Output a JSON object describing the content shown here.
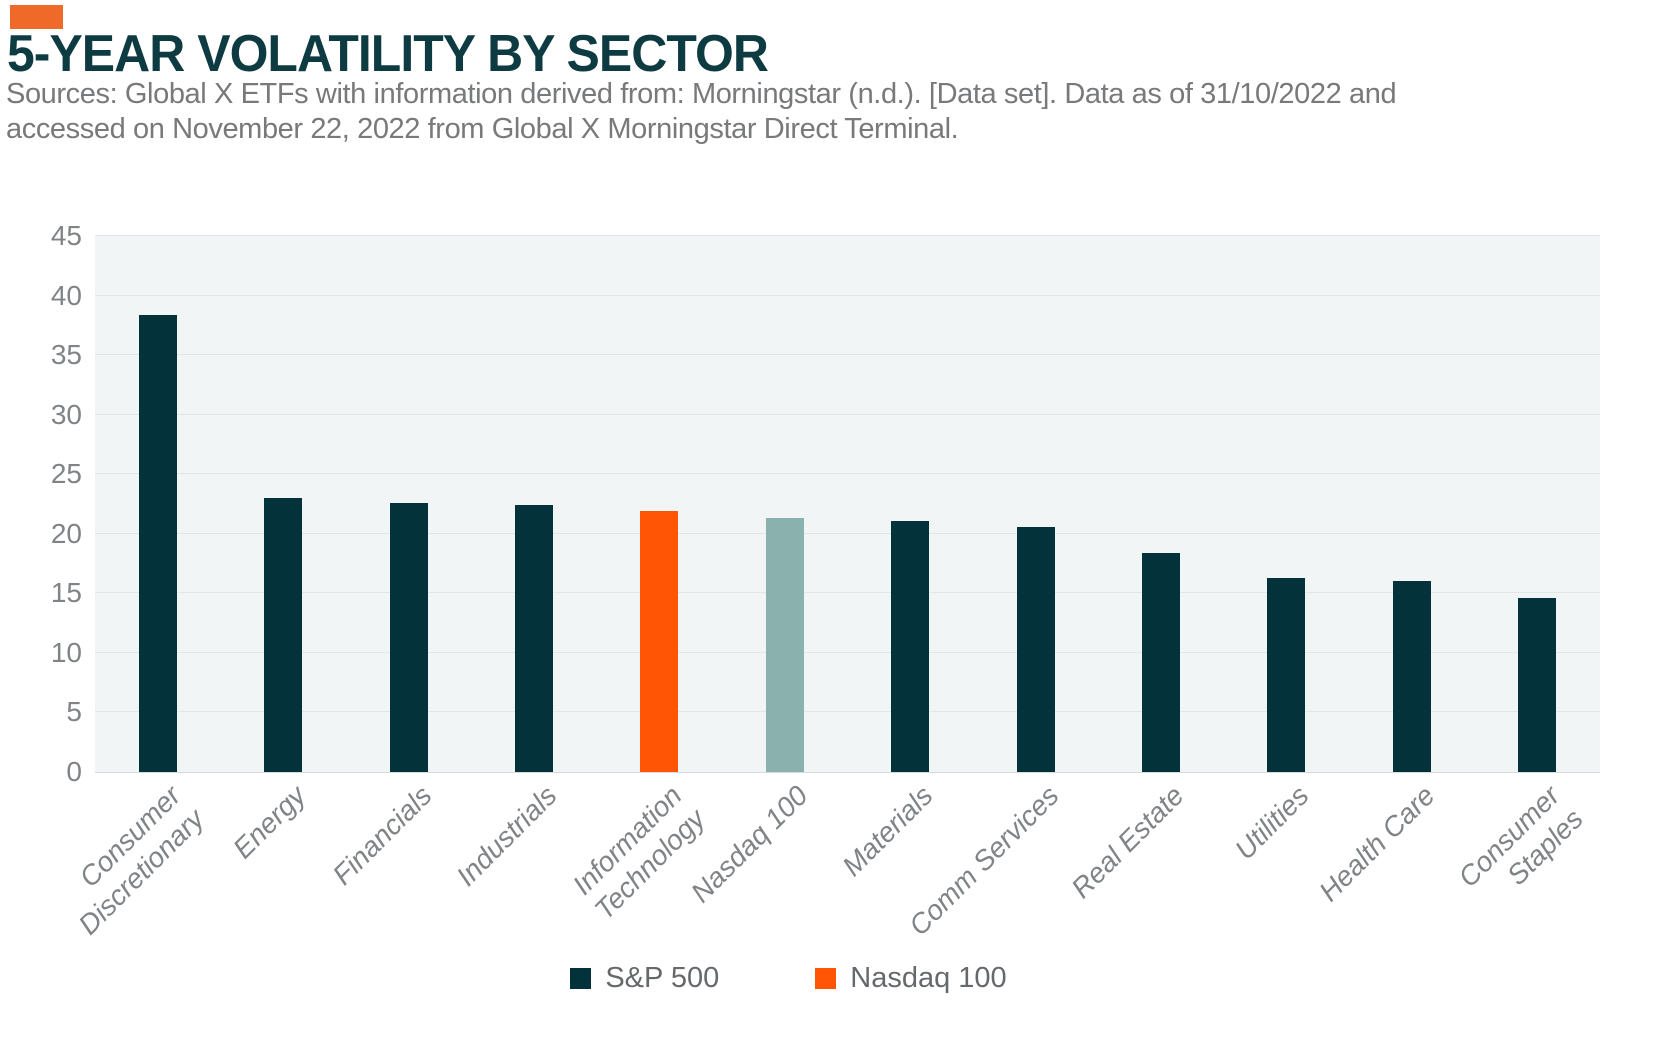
{
  "page": {
    "title": "5-YEAR VOLATILITY BY SECTOR",
    "source_text": "Sources: Global X ETFs with information derived from: Morningstar (n.d.). [Data set]. Data as of 31/10/2022 and\naccessed on November 22, 2022 from Global X Morningstar Direct Terminal."
  },
  "colors": {
    "accent_orange": "#EF6A28",
    "bar_dark_teal": "#04323B",
    "bar_orange": "#FF5505",
    "bar_sage": "#8BB1AE",
    "plot_background": "#F1F5F5",
    "gridline": "#E2E6E6",
    "axis_line": "#D8DCDC",
    "axis_text": "#808486",
    "title_text": "#0E3A42",
    "source_text": "#77797B",
    "legend_text": "#66696B"
  },
  "chart_data": {
    "type": "bar",
    "title": "5-YEAR VOLATILITY BY SECTOR",
    "categories": [
      "Consumer\nDiscretionary",
      "Energy",
      "Financials",
      "Industrials",
      "Information\nTechnology",
      "Nasdaq 100",
      "Materials",
      "Comm Services",
      "Real Estate",
      "Utilities",
      "Health Care",
      "Consumer\nStaples"
    ],
    "values": [
      38.4,
      23,
      22.6,
      22.4,
      21.9,
      21.3,
      21.1,
      20.6,
      18.4,
      16.3,
      16,
      14.6
    ],
    "bar_colors": [
      "#04323B",
      "#04323B",
      "#04323B",
      "#04323B",
      "#FF5505",
      "#8BB1AE",
      "#04323B",
      "#04323B",
      "#04323B",
      "#04323B",
      "#04323B",
      "#04323B"
    ],
    "xlabel": "",
    "ylabel": "",
    "ylim": [
      0,
      45
    ],
    "yticks": [
      0,
      5,
      10,
      15,
      20,
      25,
      30,
      35,
      40,
      45
    ],
    "grid": true,
    "legend_position": "bottom",
    "legend": [
      {
        "label": "S&P 500",
        "color": "#04323B"
      },
      {
        "label": "Nasdaq 100",
        "color": "#FF5505"
      }
    ]
  }
}
